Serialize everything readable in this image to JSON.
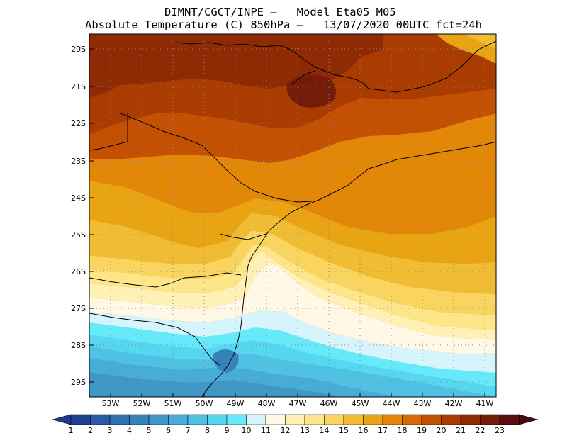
{
  "title": {
    "line1": "DIMNT/CGCT/INPE –   Model Eta05_M05_",
    "line2": "Absolute Temperature (C) 850hPa –   13/07/2020 00UTC fct=24h"
  },
  "map": {
    "variable": "Absolute Temperature",
    "units": "C",
    "level": "850hPa",
    "lat_range": [
      -29.5,
      -19.7
    ],
    "lon_range": [
      -53.7,
      -40.4
    ],
    "lat_ticks": [
      "20S",
      "21S",
      "22S",
      "23S",
      "24S",
      "25S",
      "26S",
      "27S",
      "28S",
      "29S"
    ],
    "lon_ticks": [
      "53W",
      "52W",
      "51W",
      "50W",
      "49W",
      "48W",
      "47W",
      "46W",
      "45W",
      "44W",
      "43W",
      "42W",
      "41W"
    ]
  },
  "colorbar": {
    "labels": [
      "1",
      "2",
      "3",
      "4",
      "5",
      "6",
      "7",
      "8",
      "9",
      "10",
      "11",
      "12",
      "13",
      "14",
      "15",
      "16",
      "17",
      "18",
      "19",
      "20",
      "21",
      "22",
      "23"
    ],
    "colors": [
      "#1c3f94",
      "#2a5ba4",
      "#316fae",
      "#3683ba",
      "#3f97c6",
      "#47acd6",
      "#4fc2e3",
      "#57d6ef",
      "#66eafa",
      "#d5f4fb",
      "#fff8e6",
      "#fff0b5",
      "#fde58a",
      "#f9d45e",
      "#f0bc33",
      "#e9a414",
      "#e28708",
      "#d76a04",
      "#c35003",
      "#aa3c02",
      "#8e2a04",
      "#741c0a",
      "#58100e"
    ],
    "under_color": "#1e3a8a",
    "over_color": "#4a0c10"
  }
}
